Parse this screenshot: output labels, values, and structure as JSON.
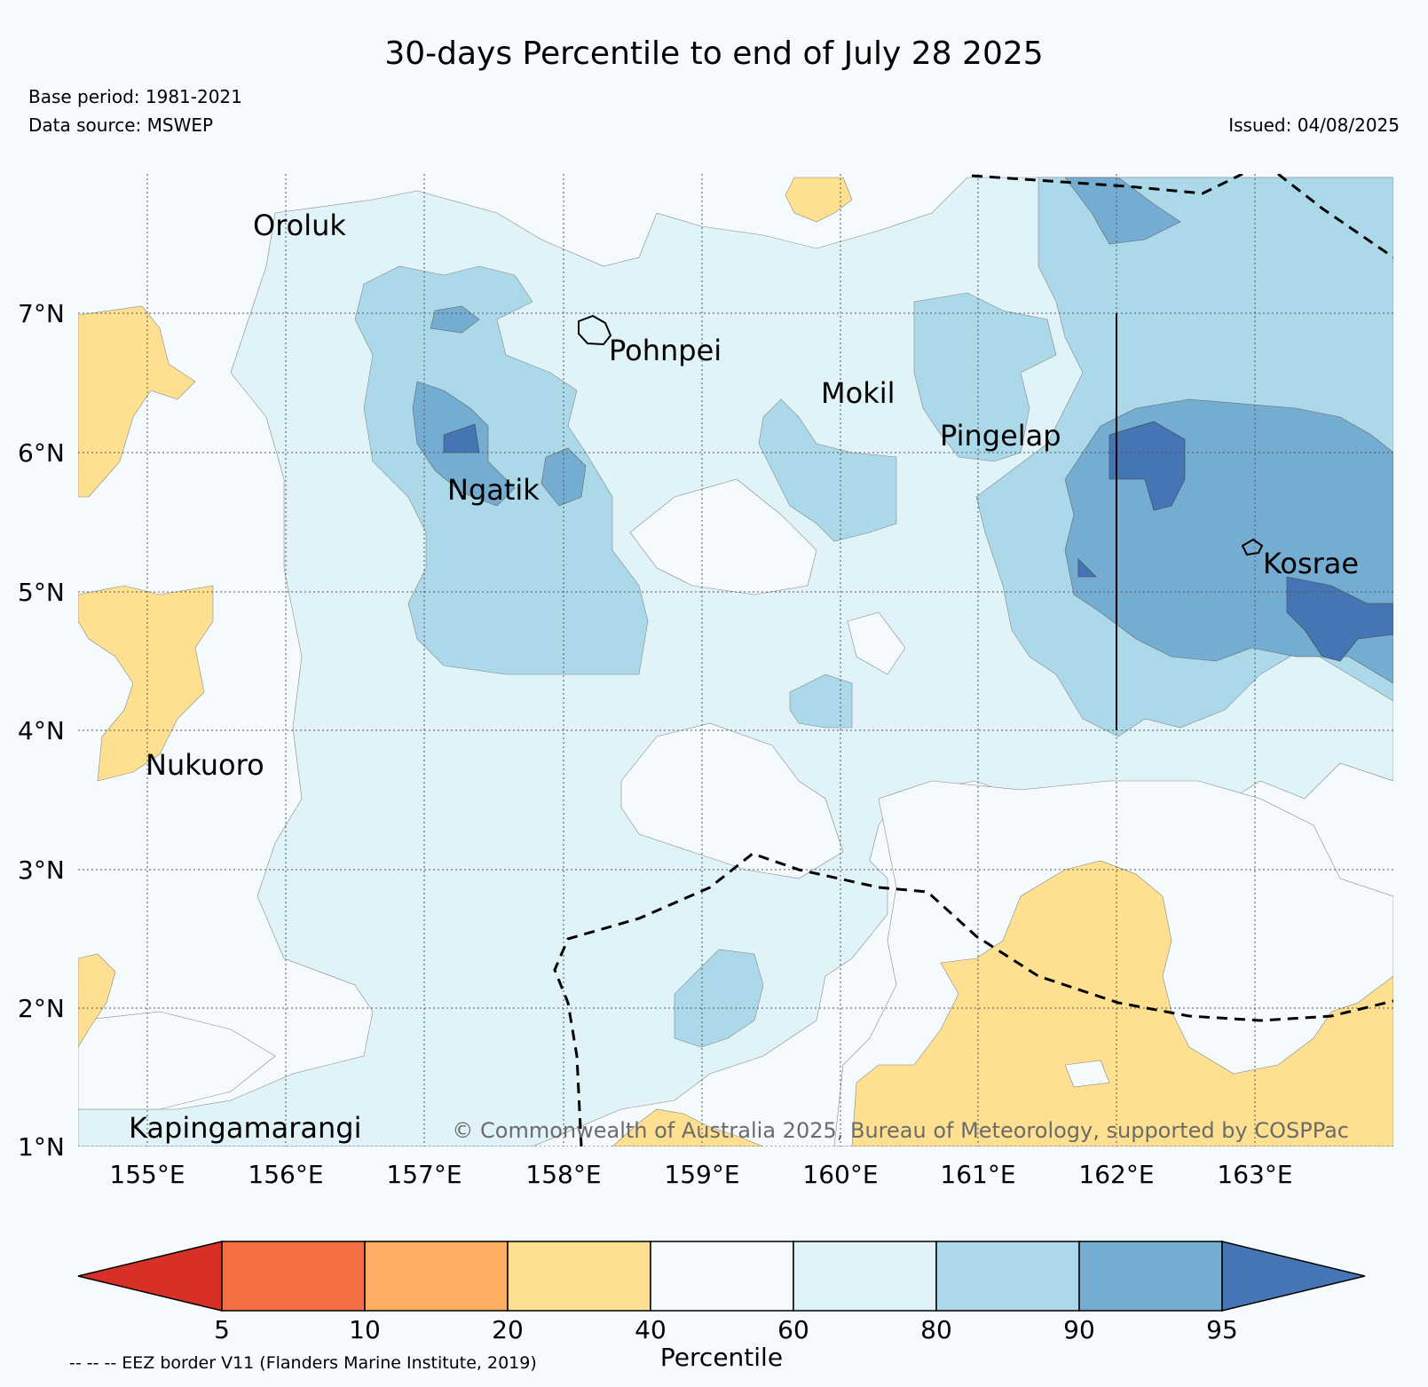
{
  "header": {
    "title": "30-days Percentile to end of July 28 2025",
    "base_period": "Base period: 1981-2021",
    "data_source": "Data source: MSWEP",
    "issued": "Issued: 04/08/2025"
  },
  "map": {
    "lat_labels": [
      "7°N",
      "6°N",
      "5°N",
      "4°N",
      "3°N",
      "2°N",
      "1°N"
    ],
    "lon_labels": [
      "155°E",
      "156°E",
      "157°E",
      "158°E",
      "159°E",
      "160°E",
      "161°E",
      "162°E",
      "163°E"
    ],
    "places": [
      {
        "name": "Oroluk"
      },
      {
        "name": "Pohnpei"
      },
      {
        "name": "Mokil"
      },
      {
        "name": "Pingelap"
      },
      {
        "name": "Ngatik"
      },
      {
        "name": "Kosrae"
      },
      {
        "name": "Nukuoro"
      },
      {
        "name": "Kapingamarangi"
      }
    ],
    "copyright": "© Commonwealth of Australia 2025, Bureau of Meteorology, supported by COSPPac",
    "colors": {
      "background": "#f5fafc",
      "p20_40": "#fee090",
      "p60_80": "#e0f3f8",
      "p80_90": "#abd9e9",
      "p90_95": "#74add1",
      "p95_plus": "#4575b4"
    }
  },
  "colorbar": {
    "ticks": [
      "5",
      "10",
      "20",
      "40",
      "60",
      "80",
      "90",
      "95"
    ],
    "colors": [
      "#d73027",
      "#f46d43",
      "#fdae61",
      "#fee090",
      "#f5fafc",
      "#e0f3f8",
      "#abd9e9",
      "#74add1",
      "#4575b4"
    ],
    "title": "Percentile"
  },
  "footnote": "-- -- -- EEZ border V11 (Flanders Marine Institute, 2019)"
}
